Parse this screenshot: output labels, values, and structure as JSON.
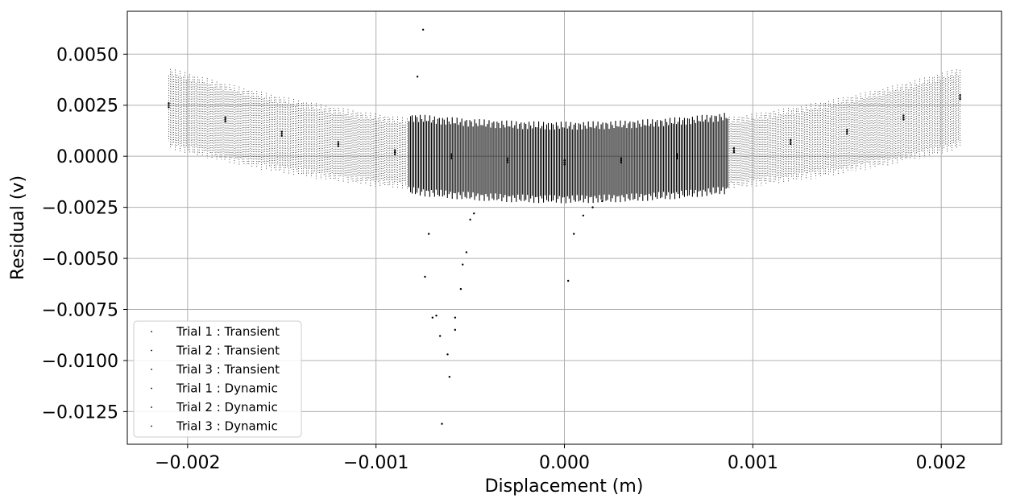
{
  "chart_data": {
    "type": "scatter",
    "title": "",
    "xlabel": "Displacement (m)",
    "ylabel": "Residual (v)",
    "xlim": [
      -0.00232,
      0.00232
    ],
    "ylim": [
      -0.0141,
      0.0071
    ],
    "xticks": [
      -0.002,
      -0.001,
      0.0,
      0.001,
      0.002
    ],
    "xtick_labels": [
      "−0.002",
      "−0.001",
      "0.000",
      "0.001",
      "0.002"
    ],
    "yticks": [
      0.005,
      0.0025,
      0.0,
      -0.0025,
      -0.005,
      -0.0075,
      -0.01,
      -0.0125
    ],
    "ytick_labels": [
      "0.0050",
      "0.0025",
      "0.0000",
      "−0.0025",
      "−0.0050",
      "−0.0075",
      "−0.0100",
      "−0.0125"
    ],
    "grid": true,
    "legend_position": "lower-left",
    "marker_color": "#000000",
    "series": [
      {
        "name": "Trial 1 : Transient",
        "x": [
          -0.00075,
          -0.00072,
          -0.00068,
          -0.00065,
          -0.00061,
          -0.00058,
          -0.00055,
          -0.00052,
          -0.00048
        ],
        "y": [
          0.0062,
          -0.0038,
          -0.0078,
          -0.0131,
          -0.0108,
          -0.0085,
          -0.0065,
          -0.0047,
          -0.0028
        ]
      },
      {
        "name": "Trial 2 : Transient",
        "x": [
          -0.00078,
          -0.00074,
          -0.0007,
          -0.00066,
          -0.00062,
          -0.00058,
          -0.00054,
          -0.0005
        ],
        "y": [
          0.0039,
          -0.0059,
          -0.0079,
          -0.0088,
          -0.0097,
          -0.0079,
          -0.0053,
          -0.0031
        ]
      },
      {
        "name": "Trial 3 : Transient",
        "x": [
          2e-05,
          5e-05,
          0.0001,
          0.00015,
          0.0002
        ],
        "y": [
          -0.0061,
          -0.0038,
          -0.0029,
          -0.0025,
          -0.0022
        ]
      },
      {
        "name": "Trial 1 : Dynamic",
        "x": [
          -0.0021,
          -0.0018,
          -0.0015,
          -0.0012,
          -0.0009,
          -0.0006,
          -0.0003,
          0.0,
          0.0003,
          0.0006,
          0.0009,
          0.0012,
          0.0015,
          0.0018,
          0.0021
        ],
        "y": [
          0.0025,
          0.0018,
          0.0011,
          0.0006,
          0.0002,
          0.0,
          -0.0002,
          -0.0003,
          -0.0002,
          0.0,
          0.0003,
          0.0007,
          0.0012,
          0.0019,
          0.0029
        ]
      },
      {
        "name": "Trial 2 : Dynamic",
        "x": [
          -0.0021,
          -0.0018,
          -0.0015,
          -0.0012,
          -0.0009,
          -0.0006,
          -0.0003,
          0.0,
          0.0003,
          0.0006,
          0.0009,
          0.0012,
          0.0015,
          0.0018,
          0.0021
        ],
        "y": [
          0.0024,
          0.0017,
          0.001,
          0.0005,
          0.0001,
          -0.0001,
          -0.0003,
          -0.0004,
          -0.0003,
          -0.0001,
          0.0002,
          0.0006,
          0.0011,
          0.0018,
          0.0028
        ]
      },
      {
        "name": "Trial 3 : Dynamic",
        "x": [
          -0.0021,
          -0.0018,
          -0.0015,
          -0.0012,
          -0.0009,
          -0.0006,
          -0.0003,
          0.0,
          0.0003,
          0.0006,
          0.0009,
          0.0012,
          0.0015,
          0.0018,
          0.0021
        ],
        "y": [
          0.0026,
          0.0019,
          0.0012,
          0.0007,
          0.0003,
          0.0001,
          -0.0001,
          -0.0002,
          -0.0001,
          0.0001,
          0.0004,
          0.0008,
          0.0013,
          0.002,
          0.003
        ]
      }
    ]
  }
}
